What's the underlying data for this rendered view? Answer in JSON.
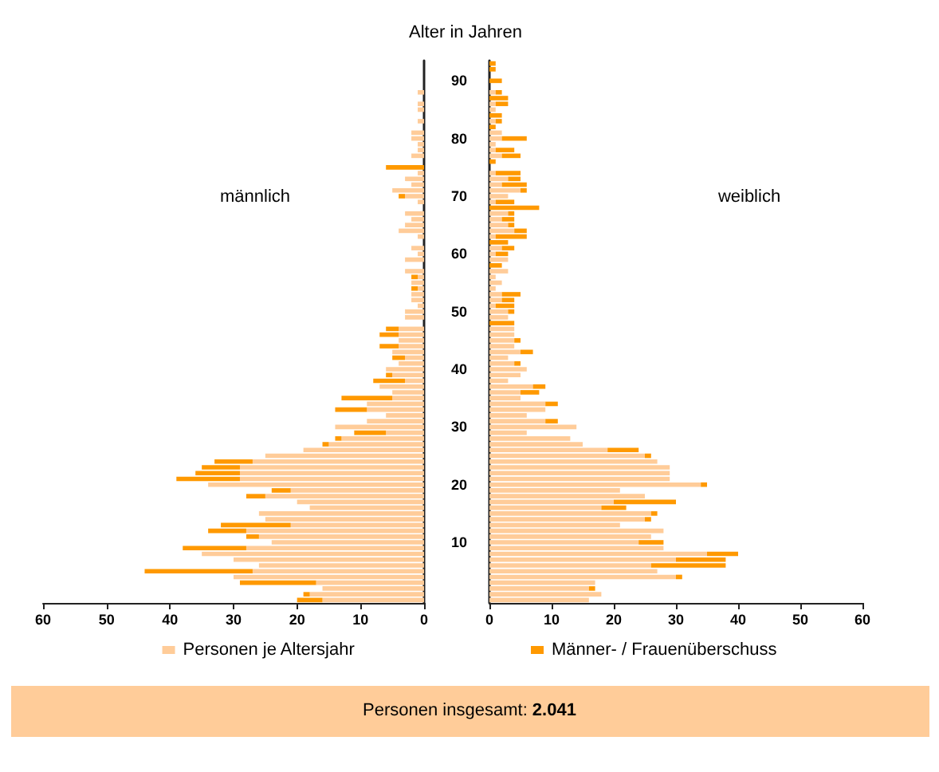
{
  "chart_data": [
    {
      "type": "bar",
      "orientation": "horizontal",
      "stacked": true,
      "title": "männlich",
      "tick_labels": "x",
      "legend": "bottom",
      "annotations": [
        "Personen insgesamt: 2.041"
      ],
      "categories": [
        null,
        null,
        null,
        "90",
        null,
        null,
        null,
        null,
        null,
        null,
        null,
        null,
        null,
        "80",
        null,
        null,
        null,
        null,
        null,
        null,
        null,
        null,
        null,
        "70",
        null,
        null,
        null,
        null,
        null,
        null,
        null,
        null,
        null,
        "60",
        null,
        null,
        null,
        null,
        null,
        null,
        null,
        null,
        null,
        "50",
        null,
        null,
        null,
        null,
        null,
        null,
        null,
        null,
        null,
        "40",
        null,
        null,
        null,
        null,
        null,
        null,
        null,
        null,
        null,
        "30",
        null,
        null,
        null,
        null,
        null,
        null,
        null,
        null,
        null,
        "20",
        null,
        null,
        null,
        null,
        null,
        null,
        null,
        null,
        null,
        "10",
        null,
        null,
        null,
        null,
        null,
        null,
        null,
        null,
        null,
        null
      ],
      "xlim": [
        60,
        0
      ],
      "xticks": [
        60,
        50,
        40,
        30,
        20,
        10,
        0
      ],
      "series": [
        {
          "name": "Personen je Altersjahr",
          "color": "#ffcc99",
          "values": [
            0,
            0,
            0,
            0,
            0,
            1,
            0,
            1,
            1,
            0,
            1,
            0,
            2,
            2,
            1,
            1,
            2,
            0,
            0,
            1,
            3,
            2,
            5,
            3,
            1,
            0,
            3,
            2,
            3,
            4,
            1,
            0,
            2,
            1,
            3,
            0,
            3,
            1,
            2,
            1,
            2,
            2,
            1,
            3,
            3,
            0,
            4,
            4,
            4,
            4,
            5,
            3,
            4,
            6,
            5,
            3,
            7,
            5,
            5,
            9,
            9,
            6,
            9,
            14,
            6,
            13,
            15,
            19,
            25,
            27,
            29,
            29,
            29,
            34,
            21,
            25,
            20,
            18,
            26,
            25,
            21,
            28,
            26,
            24,
            28,
            35,
            30,
            26,
            27,
            30,
            17,
            16,
            18,
            16
          ]
        },
        {
          "name": "Männer- / Frauenüberschuss",
          "color": "#ff9900",
          "values": [
            0,
            0,
            0,
            0,
            0,
            0,
            0,
            0,
            0,
            0,
            0,
            0,
            0,
            0,
            0,
            0,
            0,
            0,
            6,
            0,
            0,
            0,
            0,
            1,
            0,
            0,
            0,
            0,
            0,
            0,
            0,
            0,
            0,
            0,
            0,
            0,
            0,
            1,
            0,
            1,
            0,
            0,
            0,
            0,
            0,
            0,
            2,
            3,
            0,
            3,
            0,
            2,
            0,
            0,
            1,
            5,
            0,
            0,
            8,
            0,
            5,
            0,
            0,
            0,
            5,
            1,
            1,
            0,
            0,
            6,
            6,
            7,
            10,
            0,
            3,
            3,
            0,
            0,
            0,
            0,
            11,
            6,
            2,
            0,
            10,
            0,
            0,
            0,
            17,
            0,
            12,
            0,
            1,
            4
          ]
        }
      ]
    },
    {
      "type": "bar",
      "orientation": "horizontal",
      "stacked": true,
      "title": "weiblich",
      "ylabel": "Alter in Jahren",
      "categories": [
        null,
        null,
        null,
        "90",
        null,
        null,
        null,
        null,
        null,
        null,
        null,
        null,
        null,
        "80",
        null,
        null,
        null,
        null,
        null,
        null,
        null,
        null,
        null,
        "70",
        null,
        null,
        null,
        null,
        null,
        null,
        null,
        null,
        null,
        "60",
        null,
        null,
        null,
        null,
        null,
        null,
        null,
        null,
        null,
        "50",
        null,
        null,
        null,
        null,
        null,
        null,
        null,
        null,
        null,
        "40",
        null,
        null,
        null,
        null,
        null,
        null,
        null,
        null,
        null,
        "30",
        null,
        null,
        null,
        null,
        null,
        null,
        null,
        null,
        null,
        "20",
        null,
        null,
        null,
        null,
        null,
        null,
        null,
        null,
        null,
        "10",
        null,
        null,
        null,
        null,
        null,
        null,
        null,
        null,
        null,
        null
      ],
      "xlim": [
        0,
        60
      ],
      "xticks": [
        0,
        10,
        20,
        30,
        40,
        50,
        60
      ],
      "series": [
        {
          "color": "#ffcc99",
          "values": [
            0,
            0,
            0,
            0,
            0,
            1,
            0,
            1,
            1,
            0,
            1,
            0,
            2,
            2,
            1,
            1,
            2,
            0,
            0,
            1,
            3,
            2,
            5,
            3,
            1,
            0,
            3,
            2,
            3,
            4,
            1,
            0,
            2,
            1,
            3,
            0,
            3,
            1,
            2,
            1,
            2,
            2,
            1,
            3,
            3,
            0,
            4,
            4,
            4,
            4,
            5,
            3,
            4,
            6,
            5,
            3,
            7,
            5,
            5,
            9,
            9,
            6,
            9,
            14,
            6,
            13,
            15,
            19,
            25,
            27,
            29,
            29,
            29,
            34,
            21,
            25,
            20,
            18,
            26,
            25,
            21,
            28,
            26,
            24,
            28,
            35,
            30,
            26,
            27,
            30,
            17,
            16,
            18,
            16
          ]
        },
        {
          "color": "#ff9900",
          "values": [
            1,
            1,
            0,
            2,
            0,
            1,
            3,
            2,
            0,
            2,
            1,
            1,
            0,
            4,
            0,
            3,
            3,
            1,
            0,
            4,
            2,
            4,
            1,
            0,
            3,
            8,
            1,
            2,
            1,
            2,
            5,
            3,
            2,
            2,
            0,
            2,
            0,
            0,
            0,
            0,
            3,
            2,
            3,
            1,
            0,
            4,
            0,
            0,
            1,
            0,
            2,
            0,
            1,
            0,
            0,
            0,
            2,
            3,
            0,
            2,
            0,
            0,
            2,
            0,
            0,
            0,
            0,
            5,
            1,
            0,
            0,
            0,
            0,
            1,
            0,
            0,
            10,
            4,
            1,
            1,
            0,
            0,
            0,
            4,
            0,
            5,
            8,
            12,
            0,
            1,
            0,
            1,
            0,
            0
          ]
        }
      ]
    }
  ]
}
